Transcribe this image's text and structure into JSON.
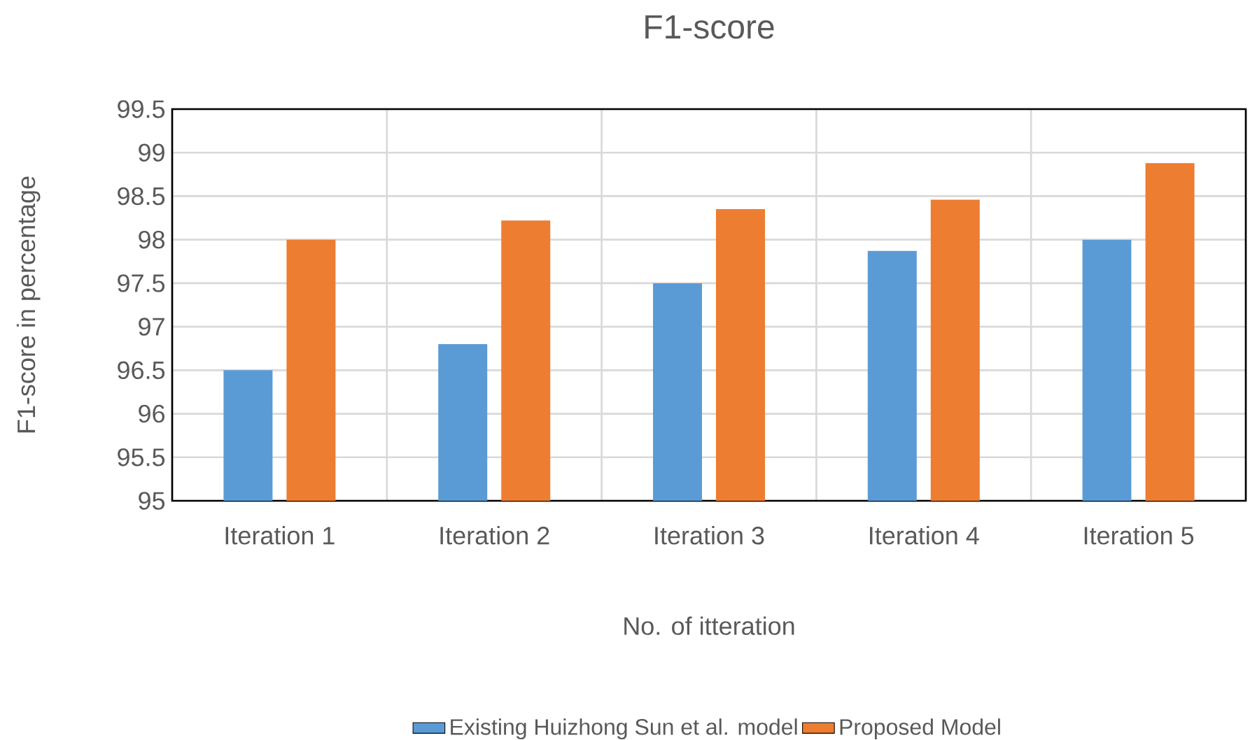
{
  "chart_data": {
    "type": "bar",
    "title": "F1-score",
    "xlabel": "No. of itteration",
    "ylabel": "F1-score in percentage",
    "categories": [
      "Iteration 1",
      "Iteration 2",
      "Iteration 3",
      "Iteration 4",
      "Iteration 5"
    ],
    "series": [
      {
        "name": "Existing Huizhong Sun et al. model",
        "color": "#5b9bd5",
        "values": [
          96.5,
          96.8,
          97.5,
          97.87,
          98.0
        ]
      },
      {
        "name": "Proposed Model",
        "color": "#ed7d31",
        "values": [
          98.0,
          98.22,
          98.35,
          98.46,
          98.88
        ]
      }
    ],
    "ylim": [
      95,
      99.5
    ],
    "yticks": [
      95,
      95.5,
      96,
      96.5,
      97,
      97.5,
      98,
      98.5,
      99,
      99.5
    ],
    "grid": true,
    "legend": "bottom"
  }
}
